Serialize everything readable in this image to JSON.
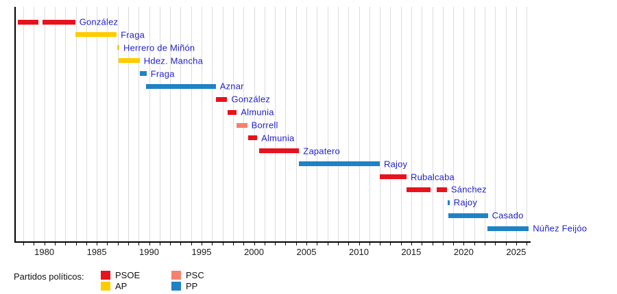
{
  "chart_data": {
    "type": "timeline",
    "title": "",
    "x_axis": {
      "min": 1977.15,
      "max": 2026.25,
      "tick_label_years": [
        1980,
        1985,
        1990,
        1995,
        2000,
        2005,
        2010,
        2015,
        2020,
        2025
      ],
      "minor_tick_every_years": 1,
      "grid_start_year": 1978,
      "grid_end_year": 2026,
      "grid": "on"
    },
    "parties": {
      "PSOE": "#e8121d",
      "AP": "#ffcc00",
      "PSC": "#f5826e",
      "PP": "#1f82c5"
    },
    "label_color": "#2222cc",
    "rows": [
      {
        "label": "González",
        "party": "PSOE",
        "segments": [
          [
            1977.5,
            1979.45
          ],
          [
            1979.8,
            1982.95
          ]
        ]
      },
      {
        "label": "Fraga",
        "party": "AP",
        "segments": [
          [
            1982.95,
            1986.9
          ]
        ]
      },
      {
        "label": "Herrero de Miñón",
        "party": "AP",
        "segments": [
          [
            1986.95,
            1987.15
          ]
        ]
      },
      {
        "label": "Hdez. Mancha",
        "party": "AP",
        "segments": [
          [
            1987.1,
            1989.1
          ]
        ]
      },
      {
        "label": "Fraga",
        "party": "PP",
        "segments": [
          [
            1989.1,
            1989.75
          ]
        ]
      },
      {
        "label": "Aznar",
        "party": "PP",
        "segments": [
          [
            1989.7,
            1996.35
          ]
        ]
      },
      {
        "label": "González",
        "party": "PSOE",
        "segments": [
          [
            1996.35,
            1997.45
          ]
        ]
      },
      {
        "label": "Almunia",
        "party": "PSOE",
        "segments": [
          [
            1997.45,
            1998.35
          ]
        ]
      },
      {
        "label": "Borrell",
        "party": "PSC",
        "segments": [
          [
            1998.35,
            1999.35
          ]
        ]
      },
      {
        "label": "Almunia",
        "party": "PSOE",
        "segments": [
          [
            1999.45,
            2000.3
          ]
        ]
      },
      {
        "label": "Zapatero",
        "party": "PSOE",
        "segments": [
          [
            2000.5,
            2004.3
          ]
        ]
      },
      {
        "label": "Rajoy",
        "party": "PP",
        "segments": [
          [
            2004.3,
            2012.0
          ]
        ]
      },
      {
        "label": "Rubalcaba",
        "party": "PSOE",
        "segments": [
          [
            2012.0,
            2014.55
          ]
        ]
      },
      {
        "label": "Sánchez",
        "party": "PSOE",
        "segments": [
          [
            2014.55,
            2016.85
          ],
          [
            2017.4,
            2018.4
          ]
        ]
      },
      {
        "label": "Rajoy",
        "party": "PP",
        "segments": [
          [
            2018.45,
            2018.65
          ]
        ]
      },
      {
        "label": "Casado",
        "party": "PP",
        "segments": [
          [
            2018.55,
            2022.3
          ]
        ]
      },
      {
        "label": "Núñez Feijóo",
        "party": "PP",
        "segments": [
          [
            2022.25,
            2026.2
          ]
        ]
      }
    ]
  },
  "legend": {
    "title": "Partidos políticos:",
    "columns": [
      [
        {
          "label": "PSOE",
          "color": "#e8121d"
        },
        {
          "label": "AP",
          "color": "#ffcc00"
        }
      ],
      [
        {
          "label": "PSC",
          "color": "#f5826e"
        },
        {
          "label": "PP",
          "color": "#1f82c5"
        }
      ]
    ]
  }
}
